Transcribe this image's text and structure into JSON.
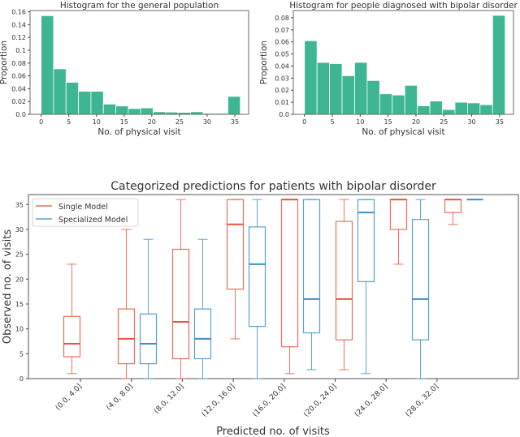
{
  "colors": {
    "bar": "#3fb693",
    "single": "#e8553f",
    "specialized": "#3b8fc6"
  },
  "chart_data": [
    {
      "type": "bar",
      "title": "Histogram for the general population",
      "xlabel": "No. of physical visit",
      "ylabel": "Proportion",
      "bin_edges": [
        0,
        2.25,
        4.5,
        6.75,
        9,
        11.25,
        13.5,
        15.75,
        18,
        20.25,
        22.5,
        24.75,
        27,
        29.25,
        31.5,
        33.75,
        36
      ],
      "values": [
        0.154,
        0.071,
        0.05,
        0.036,
        0.036,
        0.016,
        0.013,
        0.009,
        0.01,
        0.004,
        0.0035,
        0.003,
        0.004,
        0.0015,
        0.0015,
        0.028
      ],
      "xlim": [
        -2,
        37.5
      ],
      "ylim": [
        0,
        0.162
      ],
      "xticks": [
        0,
        5,
        10,
        15,
        20,
        25,
        30,
        35
      ],
      "yticks": [
        0.0,
        0.02,
        0.04,
        0.06,
        0.08,
        0.1,
        0.12,
        0.14,
        0.16
      ],
      "ytick_labels": [
        "0.0",
        "0.02",
        "0.04",
        "0.06",
        "0.08",
        "0.1",
        "0.12",
        "0.14",
        "0.16"
      ]
    },
    {
      "type": "bar",
      "title": "Histogram for people diagnosed with bipolar disorder",
      "xlabel": "No. of physical visit",
      "ylabel": "Proportion",
      "bin_edges": [
        0,
        2.25,
        4.5,
        6.75,
        9,
        11.25,
        13.5,
        15.75,
        18,
        20.25,
        22.5,
        24.75,
        27,
        29.25,
        31.5,
        33.75,
        36
      ],
      "values": [
        0.061,
        0.043,
        0.042,
        0.032,
        0.043,
        0.028,
        0.017,
        0.016,
        0.024,
        0.007,
        0.011,
        0.004,
        0.01,
        0.0095,
        0.008,
        0.082
      ],
      "xlim": [
        -2,
        37.5
      ],
      "ylim": [
        0,
        0.086
      ],
      "xticks": [
        0,
        5,
        10,
        15,
        20,
        25,
        30,
        35
      ],
      "yticks": [
        0.0,
        0.01,
        0.02,
        0.03,
        0.04,
        0.05,
        0.06,
        0.07,
        0.08
      ],
      "ytick_labels": [
        "0.0",
        "0.01",
        "0.02",
        "0.03",
        "0.04",
        "0.05",
        "0.06",
        "0.07",
        "0.08"
      ]
    },
    {
      "type": "box",
      "title": "Categorized predictions for patients with bipolar disorder",
      "xlabel": "Predicted no. of visits",
      "ylabel": "Observed no. of visits",
      "ylim": [
        0,
        37
      ],
      "yticks": [
        0,
        5,
        10,
        15,
        20,
        25,
        30,
        35
      ],
      "categories": [
        "(0.0, 4.0]",
        "(4.0, 8.0]",
        "(8.0, 12.0]",
        "(12.0, 16.0]",
        "(16.0, 20.0]",
        "(20.0, 24.0]",
        "(24.0, 28.0]",
        "(28.0, 32.0]"
      ],
      "legend": "top-left",
      "series": [
        {
          "name": "Single Model",
          "color_key": "single",
          "boxes": [
            {
              "lo": 1,
              "q1": 4.4,
              "med": 7,
              "q3": 12.5,
              "hi": 23
            },
            {
              "lo": 0,
              "q1": 3,
              "med": 8,
              "q3": 14,
              "hi": 30
            },
            {
              "lo": 0,
              "q1": 4,
              "med": 11.4,
              "q3": 26,
              "hi": 36
            },
            {
              "lo": 8,
              "q1": 18,
              "med": 31,
              "q3": 36,
              "hi": 36
            },
            {
              "lo": 1,
              "q1": 6.4,
              "med": 36,
              "q3": 36,
              "hi": 36
            },
            {
              "lo": 1.8,
              "q1": 7.8,
              "med": 16,
              "q3": 31.6,
              "hi": 36
            },
            {
              "lo": 23,
              "q1": 30,
              "med": 36,
              "q3": 36,
              "hi": 36
            },
            {
              "lo": 31,
              "q1": 33.4,
              "med": 36,
              "q3": 36,
              "hi": 36
            }
          ]
        },
        {
          "name": "Specialized Model",
          "color_key": "specialized",
          "boxes": [
            null,
            {
              "lo": 0,
              "q1": 3,
              "med": 7,
              "q3": 13,
              "hi": 28
            },
            {
              "lo": 0,
              "q1": 4,
              "med": 8,
              "q3": 14,
              "hi": 28
            },
            {
              "lo": 0,
              "q1": 10.5,
              "med": 23,
              "q3": 30.5,
              "hi": 36
            },
            {
              "lo": 1.8,
              "q1": 9.2,
              "med": 16,
              "q3": 36,
              "hi": 36
            },
            {
              "lo": 1,
              "q1": 19.5,
              "med": 33.4,
              "q3": 36,
              "hi": 36
            },
            {
              "lo": 0,
              "q1": 7.8,
              "med": 16,
              "q3": 32,
              "hi": 36
            },
            {
              "lo": 36,
              "q1": 36,
              "med": 36,
              "q3": 36,
              "hi": 36
            }
          ]
        }
      ]
    }
  ]
}
